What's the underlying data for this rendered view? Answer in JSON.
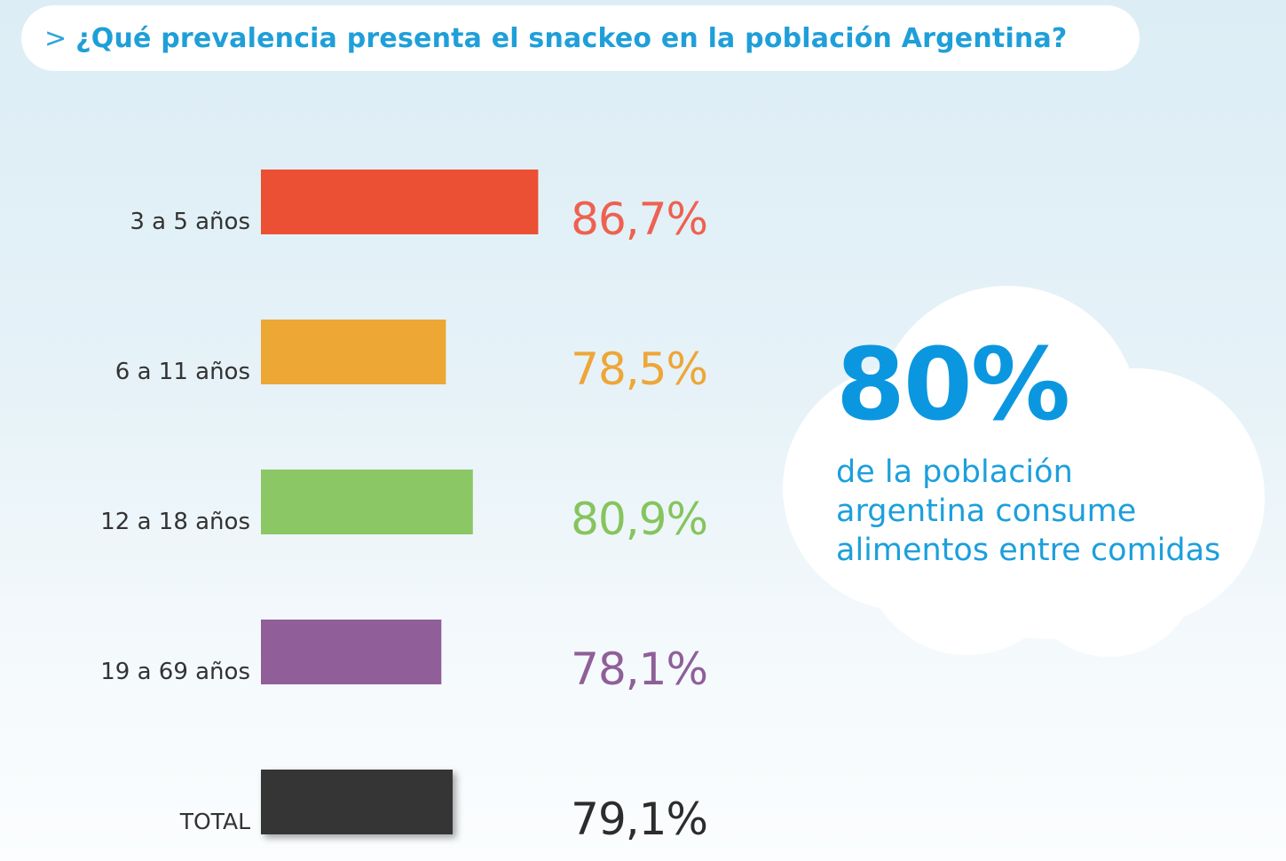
{
  "title": {
    "marker": ">",
    "text": "¿Qué prevalencia presenta el snackeo en la población Argentina?"
  },
  "chart_data": {
    "type": "bar",
    "orientation": "horizontal",
    "categories": [
      "3 a 5 años",
      "6 a 11 años",
      "12 a 18 años",
      "19 a 69 años",
      "TOTAL"
    ],
    "values": [
      86.7,
      78.5,
      80.9,
      78.1,
      79.1
    ],
    "value_labels": [
      "86,7%",
      "78,5%",
      "80,9%",
      "78,1%",
      "79,1%"
    ],
    "colors": [
      "#eb4f34",
      "#eca735",
      "#8cc765",
      "#905e98",
      "#353535"
    ],
    "label_colors": [
      "#ee6150",
      "#eea637",
      "#86c45d",
      "#8f5f98",
      "#2c2c2c"
    ],
    "grid": false,
    "legend": "none"
  },
  "callout": {
    "value": "80%",
    "lines": [
      "de la población",
      "argentina consume",
      "alimentos entre comidas"
    ]
  }
}
